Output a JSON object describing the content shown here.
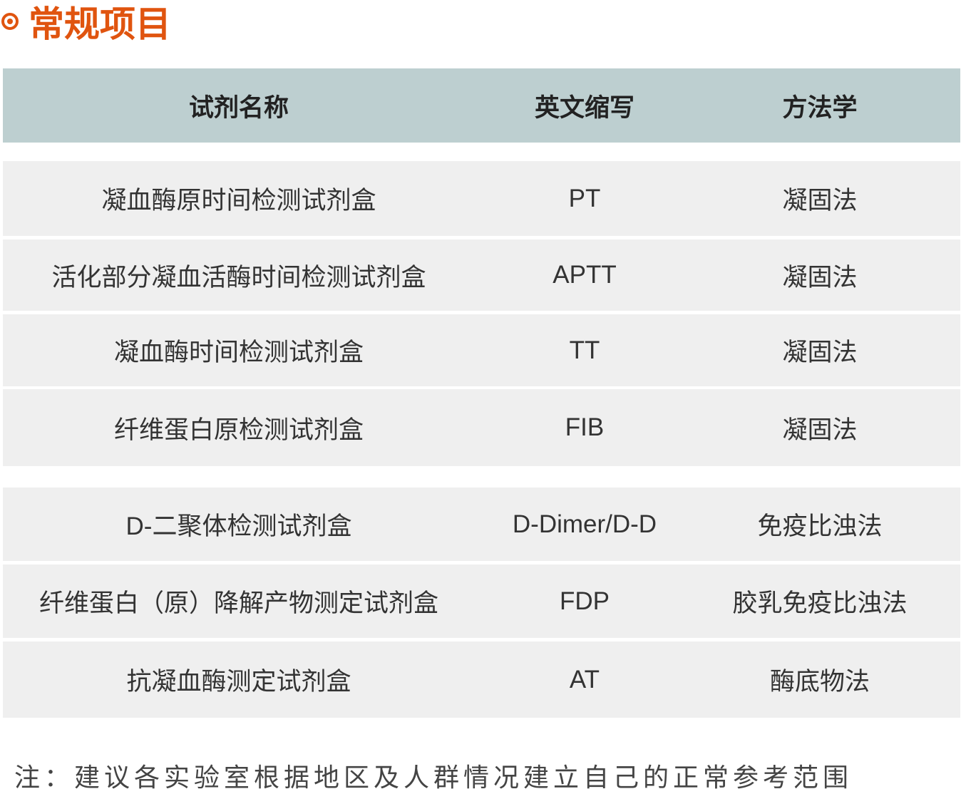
{
  "title": {
    "icon": "bullseye-icon",
    "text": "常规项目",
    "color": "#e0540f"
  },
  "table": {
    "header_color": "#bdcfd0",
    "row_color": "#efefef",
    "headers": [
      "试剂名称",
      "英文缩写",
      "方法学"
    ],
    "rows": [
      [
        "凝血酶原时间检测试剂盒",
        "PT",
        "凝固法"
      ],
      [
        "活化部分凝血活酶时间检测试剂盒",
        "APTT",
        "凝固法"
      ],
      [
        "凝血酶时间检测试剂盒",
        "TT",
        "凝固法"
      ],
      [
        "纤维蛋白原检测试剂盒",
        "FIB",
        "凝固法"
      ],
      [
        "D-二聚体检测试剂盒",
        "D-Dimer/D-D",
        "免疫比浊法"
      ],
      [
        "纤维蛋白（原）降解产物测定试剂盒",
        "FDP",
        "胶乳免疫比浊法"
      ],
      [
        "抗凝血酶测定试剂盒",
        "AT",
        "酶底物法"
      ]
    ]
  },
  "note": "注：建议各实验室根据地区及人群情况建立自己的正常参考范围"
}
